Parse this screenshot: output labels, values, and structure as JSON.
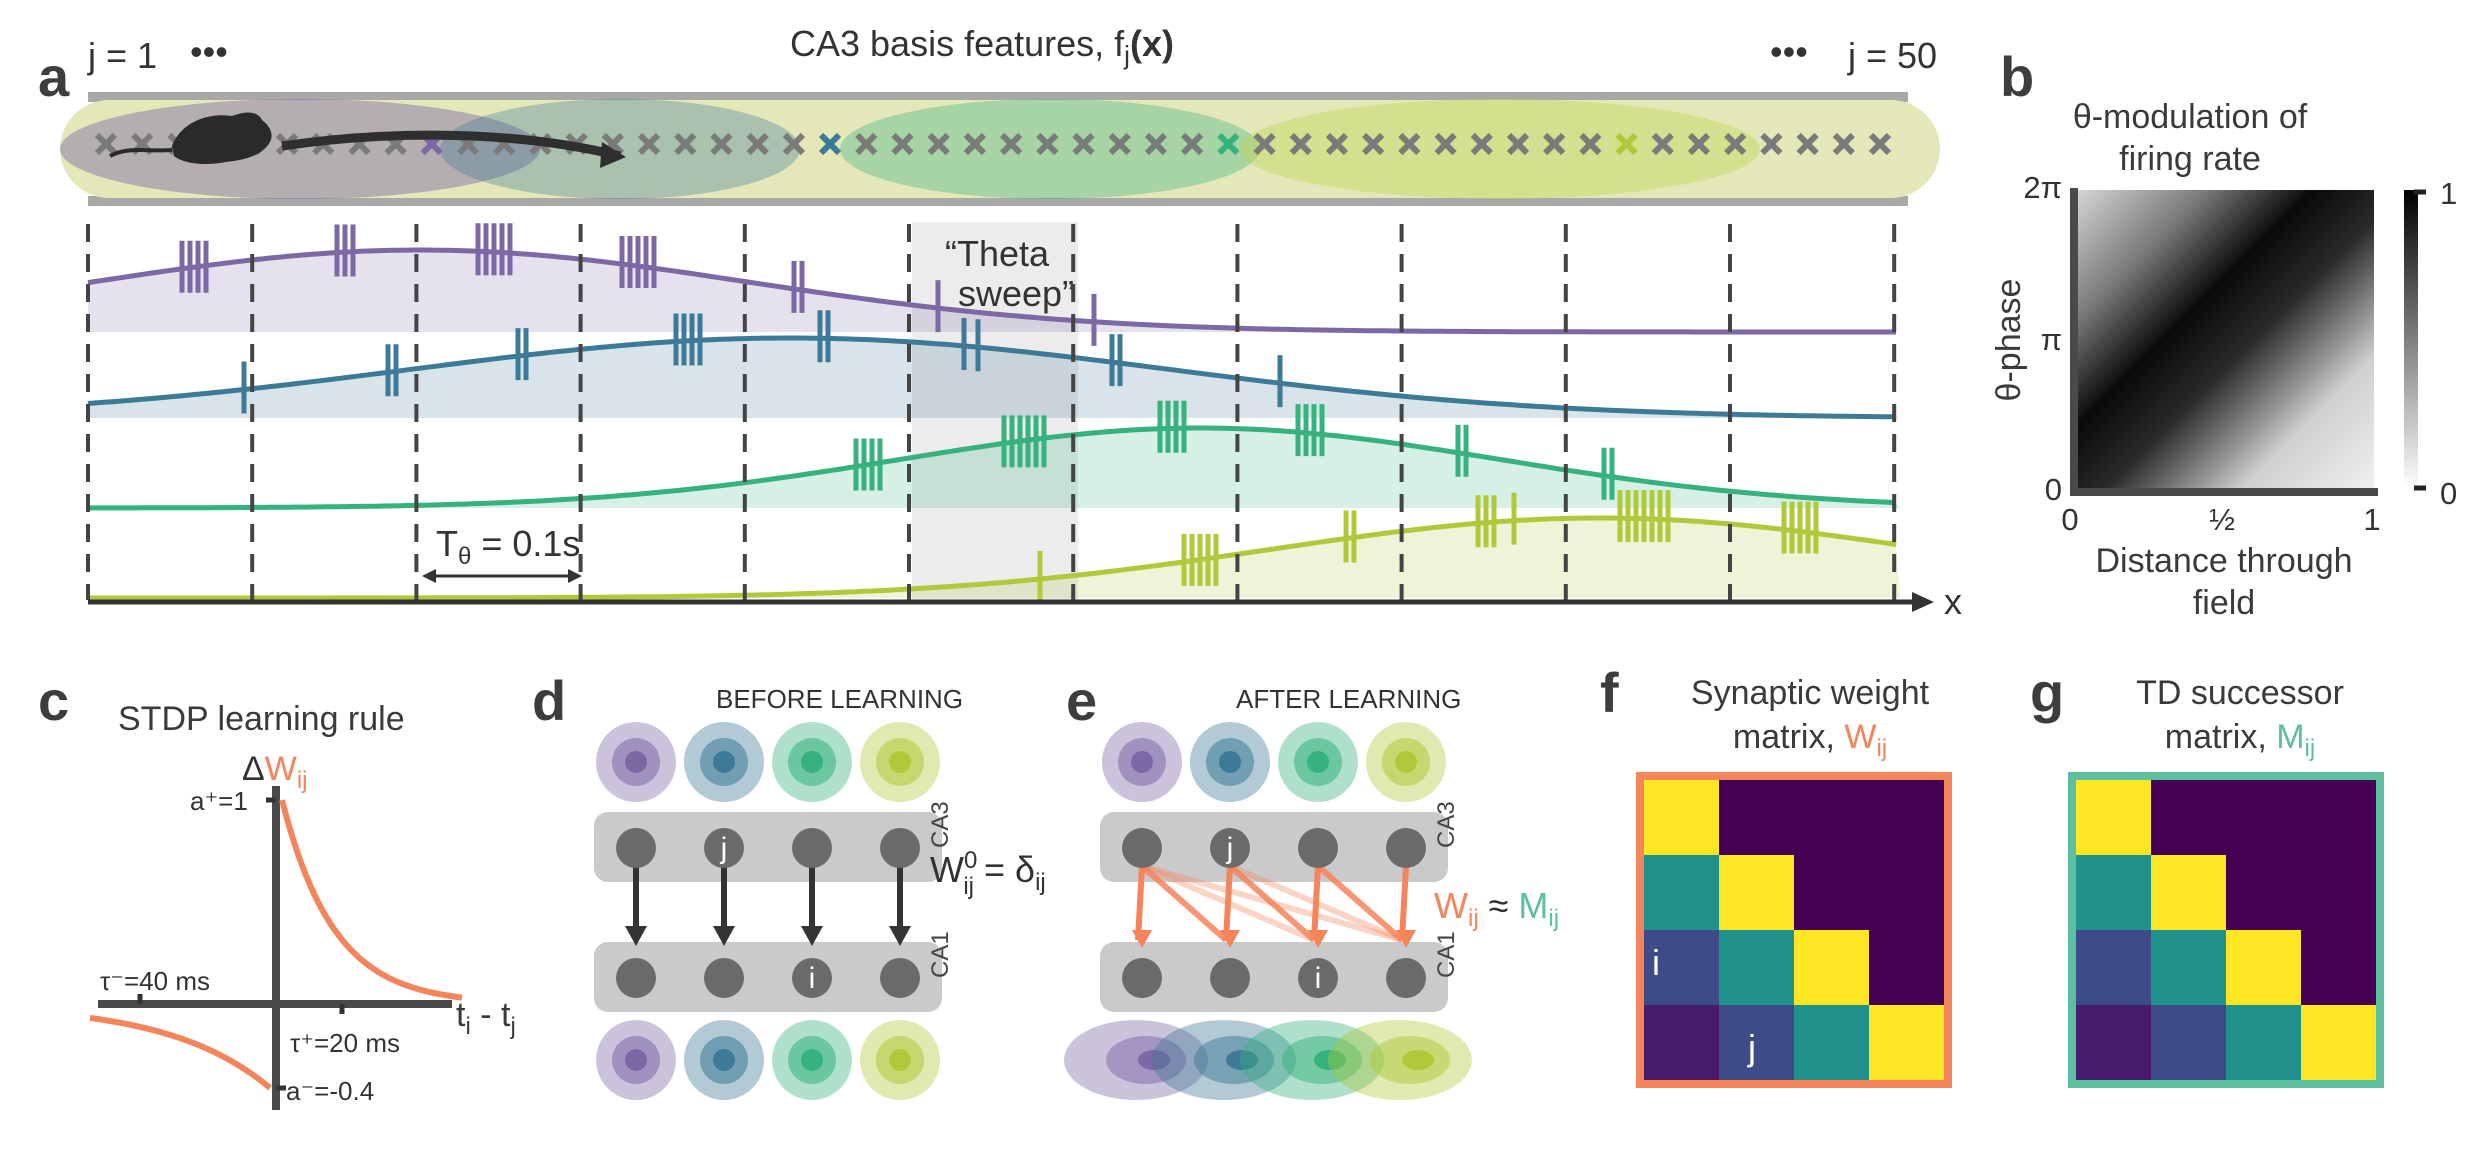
{
  "panels": {
    "a": {
      "tag": "a",
      "title": "CA3 basis features, f",
      "title_sub": "j",
      "title_paren": "(x)",
      "j_first": "j = 1",
      "j_last": "j = 50",
      "ellipsis": "•••",
      "theta_sweep_line1": "“Theta",
      "theta_sweep_line2": "sweep”",
      "period_main": "T",
      "period_sub": "θ",
      "period_val": " = 0.1s",
      "x_axis": "x",
      "track_colors": [
        "#7d68a6",
        "#3d7a97",
        "#35b27d",
        "#b0c93a"
      ],
      "marker_gray": "#7a7a7a",
      "highlight_markers": [
        {
          "index": 9,
          "color": "#7d68a6"
        },
        {
          "index": 20,
          "color": "#3d7a97"
        },
        {
          "index": 31,
          "color": "#35b27d"
        },
        {
          "index": 42,
          "color": "#b0c93a"
        }
      ]
    },
    "b": {
      "tag": "b",
      "title_line1": "θ-modulation of",
      "title_line2": "firing rate",
      "ylabel": "θ-phase",
      "xlabel_line1": "Distance through",
      "xlabel_line2": "field",
      "yticks": [
        "0",
        "π",
        "2π"
      ],
      "xticks": [
        "0",
        "½",
        "1"
      ],
      "colorbar_ticks": [
        "0",
        "1"
      ]
    },
    "c": {
      "tag": "c",
      "title": "STDP learning rule",
      "ylabel_delta": "Δ",
      "ylabel_w": "W",
      "ylabel_sub": "ij",
      "a_plus": "a⁺=1",
      "a_minus": "a⁻=-0.4",
      "tau_minus": "τ⁻=40 ms",
      "tau_plus": "τ⁺=20 ms",
      "xlabel_main": "t",
      "xlabel_sub1": "i",
      "xlabel_mid": " - t",
      "xlabel_sub2": "j",
      "curve_color": "#f4845a"
    },
    "d": {
      "tag": "d",
      "title": "BEFORE LEARNING",
      "ca3": "CA3",
      "ca1": "CA1",
      "node_j": "j",
      "node_i": "i",
      "eq_w": "W",
      "eq_sup": "0",
      "eq_sub": "ij",
      "eq_rest": " = δ",
      "eq_sub2": "ij"
    },
    "e": {
      "tag": "e",
      "title": "AFTER LEARNING",
      "ca3": "CA3",
      "ca1": "CA1",
      "node_j": "j",
      "node_i": "i",
      "eq_w": "W",
      "eq_sub": "ij",
      "eq_approx": " ≈ ",
      "eq_m": "M",
      "eq_sub2": "ij"
    },
    "f": {
      "tag": "f",
      "title_line1": "Synaptic weight",
      "title_line2": "matrix, ",
      "title_w": "W",
      "title_sub": "ij",
      "label_i": "i",
      "label_j": "j",
      "frame_color": "#f4845a",
      "matrix": [
        [
          1,
          0,
          0,
          0
        ],
        [
          0.5,
          1,
          0,
          0
        ],
        [
          0.28,
          0.5,
          1,
          0
        ],
        [
          0.1,
          0.28,
          0.5,
          1
        ]
      ]
    },
    "g": {
      "tag": "g",
      "title_line1": "TD successor",
      "title_line2": "matrix, ",
      "title_m": "M",
      "title_sub": "ij",
      "frame_color": "#5cbfa0",
      "matrix": [
        [
          1,
          0,
          0,
          0
        ],
        [
          0.5,
          1,
          0,
          0
        ],
        [
          0.28,
          0.5,
          1,
          0
        ],
        [
          0.1,
          0.28,
          0.5,
          1
        ]
      ]
    }
  }
}
